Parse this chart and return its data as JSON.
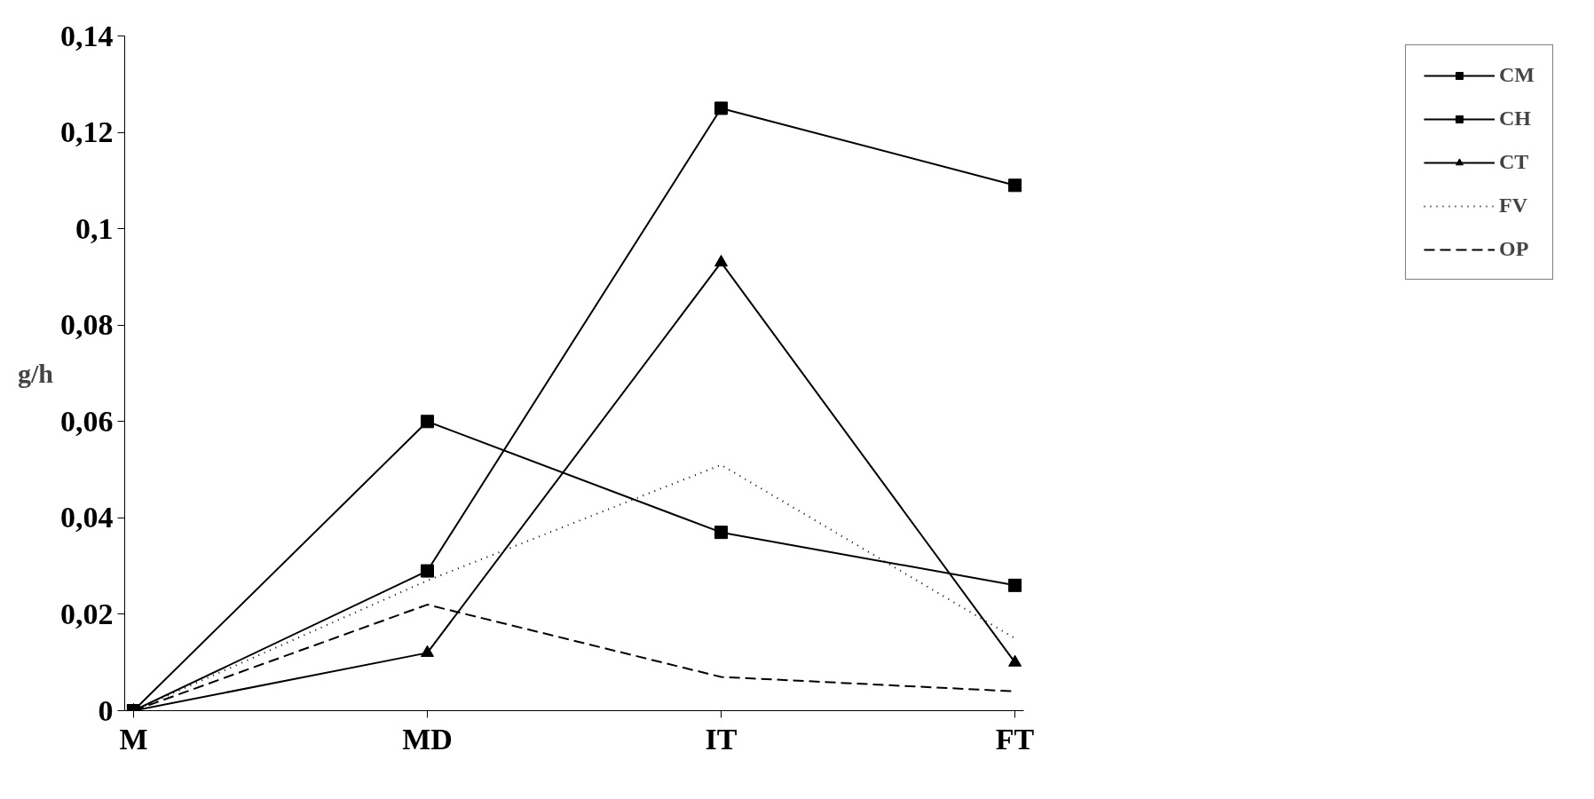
{
  "chart_data": {
    "type": "line",
    "ylabel": "g/h",
    "categories": [
      "M",
      "MD",
      "IT",
      "FT"
    ],
    "ylim": [
      0,
      0.14
    ],
    "yticks": [
      0,
      {
        "value": 0.02,
        "label": "0,02"
      },
      {
        "value": 0.04,
        "label": "0,04"
      },
      {
        "value": 0.06,
        "label": "0,06"
      },
      {
        "value": 0.08,
        "label": "0,08"
      },
      {
        "value": 0.1,
        "label": "0,1"
      },
      {
        "value": 0.12,
        "label": "0,12"
      },
      {
        "value": 0.14,
        "label": "0,14"
      }
    ],
    "grid": false,
    "legend": "right",
    "series": [
      {
        "name": "CM",
        "color": "#000000",
        "values": [
          0,
          0.029,
          0.125,
          0.109
        ],
        "marker": "square",
        "line_style": "solid"
      },
      {
        "name": "CH",
        "color": "#000000",
        "values": [
          0,
          0.06,
          0.037,
          0.026
        ],
        "marker": "square",
        "line_style": "solid"
      },
      {
        "name": "CT",
        "color": "#000000",
        "values": [
          0,
          0.012,
          0.093,
          0.01
        ],
        "marker": "triangle",
        "line_style": "solid"
      },
      {
        "name": "FV",
        "color": "#000000",
        "values": [
          0,
          0.027,
          0.051,
          0.015
        ],
        "marker": "none",
        "line_style": "dotted"
      },
      {
        "name": "OP",
        "color": "#000000",
        "values": [
          0,
          0.022,
          0.007,
          0.004
        ],
        "marker": "none",
        "line_style": "dashed"
      }
    ]
  }
}
